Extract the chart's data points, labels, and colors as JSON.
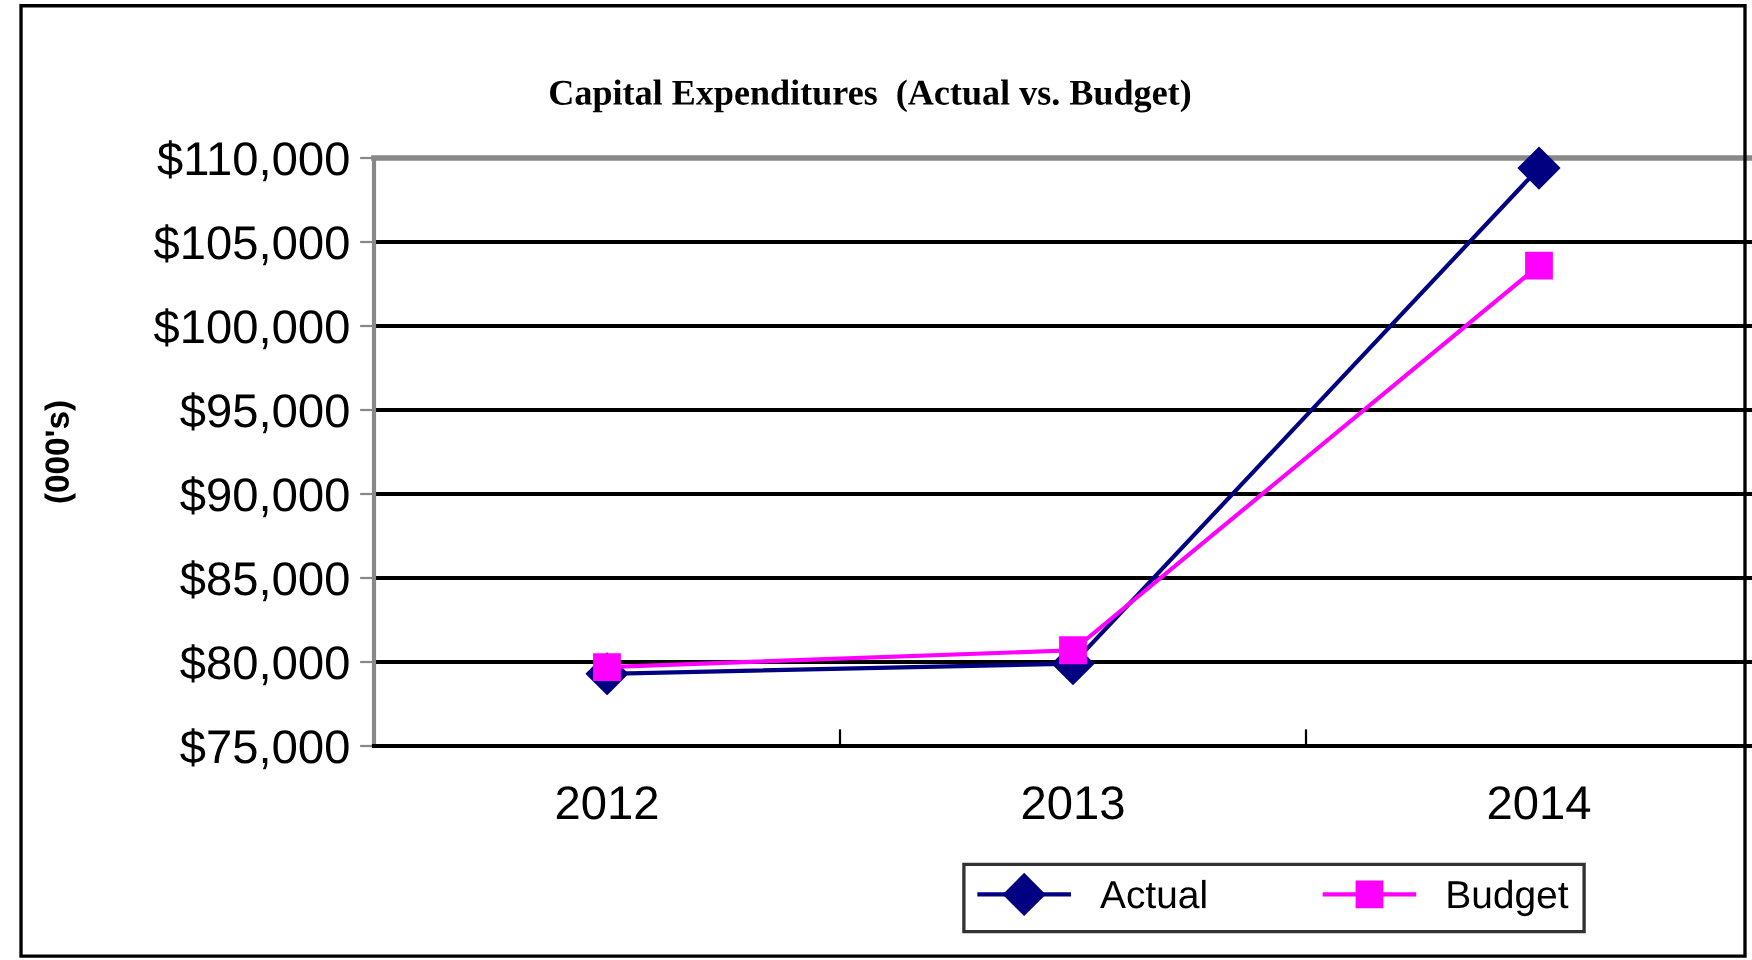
{
  "chart_data": {
    "type": "line",
    "title": "Capital Expenditures  (Actual vs. Budget)",
    "ylabel": "(000's)",
    "categories": [
      "2012",
      "2013",
      "2014"
    ],
    "series": [
      {
        "name": "Actual",
        "color": "#000080",
        "marker": "diamond",
        "values": [
          79300,
          79900,
          109400
        ]
      },
      {
        "name": "Budget",
        "color": "#ff00ff",
        "marker": "square",
        "values": [
          79700,
          80700,
          103600
        ]
      }
    ],
    "ylim": [
      75000,
      110000
    ],
    "yticks": [
      {
        "value": 75000,
        "label": "$75,000"
      },
      {
        "value": 80000,
        "label": "$80,000"
      },
      {
        "value": 85000,
        "label": "$85,000"
      },
      {
        "value": 90000,
        "label": "$90,000"
      },
      {
        "value": 95000,
        "label": "$95,000"
      },
      {
        "value": 100000,
        "label": "$100,000"
      },
      {
        "value": 105000,
        "label": "$105,000"
      },
      {
        "value": 110000,
        "label": "$110,000"
      }
    ],
    "grid": "y",
    "legend": "bottom",
    "line_style": "solid"
  }
}
